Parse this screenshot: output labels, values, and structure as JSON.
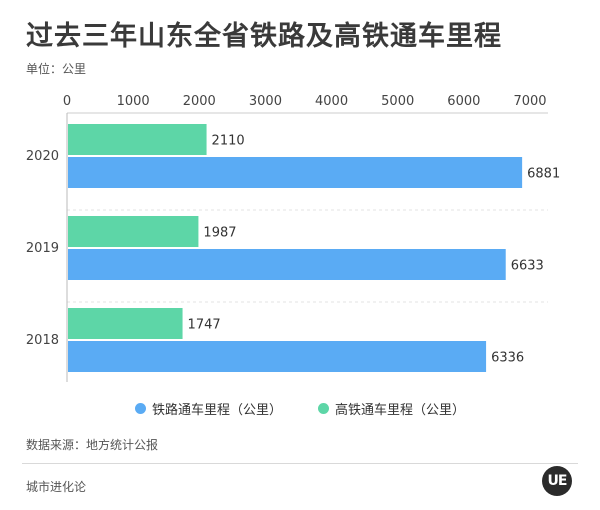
{
  "title": "过去三年山东全省铁路及高铁通车里程",
  "unit_label": "单位：公里",
  "source": "数据来源：地方统计公报",
  "brand": "城市进化论",
  "logo_text": "UE",
  "chart_data": {
    "type": "bar",
    "orientation": "horizontal",
    "categories": [
      "2020",
      "2019",
      "2018"
    ],
    "series": [
      {
        "name": "铁路通车里程（公里）",
        "values": [
          6881,
          6633,
          6336
        ],
        "color": "#5aabf4"
      },
      {
        "name": "高铁通车里程（公里）",
        "values": [
          2110,
          1987,
          1747
        ],
        "color": "#5dd6a7"
      }
    ],
    "xlim": [
      0,
      7000
    ],
    "xticks": [
      0,
      1000,
      2000,
      3000,
      4000,
      5000,
      6000,
      7000
    ],
    "grid": true,
    "legend_position": "bottom"
  }
}
